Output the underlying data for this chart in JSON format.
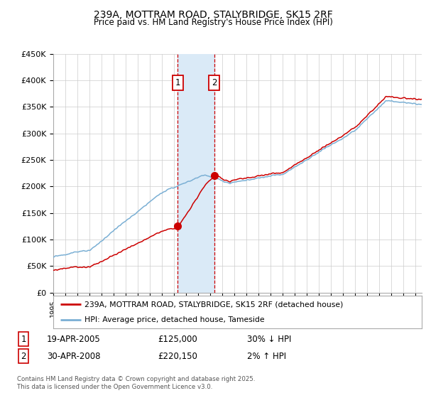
{
  "title": "239A, MOTTRAM ROAD, STALYBRIDGE, SK15 2RF",
  "subtitle": "Price paid vs. HM Land Registry's House Price Index (HPI)",
  "ylim": [
    0,
    450000
  ],
  "yticks": [
    0,
    50000,
    100000,
    150000,
    200000,
    250000,
    300000,
    350000,
    400000,
    450000
  ],
  "ytick_labels": [
    "£0",
    "£50K",
    "£100K",
    "£150K",
    "£200K",
    "£250K",
    "£300K",
    "£350K",
    "£400K",
    "£450K"
  ],
  "xlim_start": 1995.0,
  "xlim_end": 2025.5,
  "sale1_date": 2005.29,
  "sale1_price": 125000,
  "sale2_date": 2008.33,
  "sale2_price": 220150,
  "line_red_color": "#cc0000",
  "line_blue_color": "#7aafd4",
  "shade_color": "#daeaf7",
  "legend_line1": "239A, MOTTRAM ROAD, STALYBRIDGE, SK15 2RF (detached house)",
  "legend_line2": "HPI: Average price, detached house, Tameside",
  "footer": "Contains HM Land Registry data © Crown copyright and database right 2025.\nThis data is licensed under the Open Government Licence v3.0.",
  "bg_color": "#ffffff",
  "grid_color": "#cccccc",
  "box1_date_str": "19-APR-2005",
  "box1_price_str": "£125,000",
  "box1_pct_str": "30% ↓ HPI",
  "box2_date_str": "30-APR-2008",
  "box2_price_str": "£220,150",
  "box2_pct_str": "2% ↑ HPI"
}
